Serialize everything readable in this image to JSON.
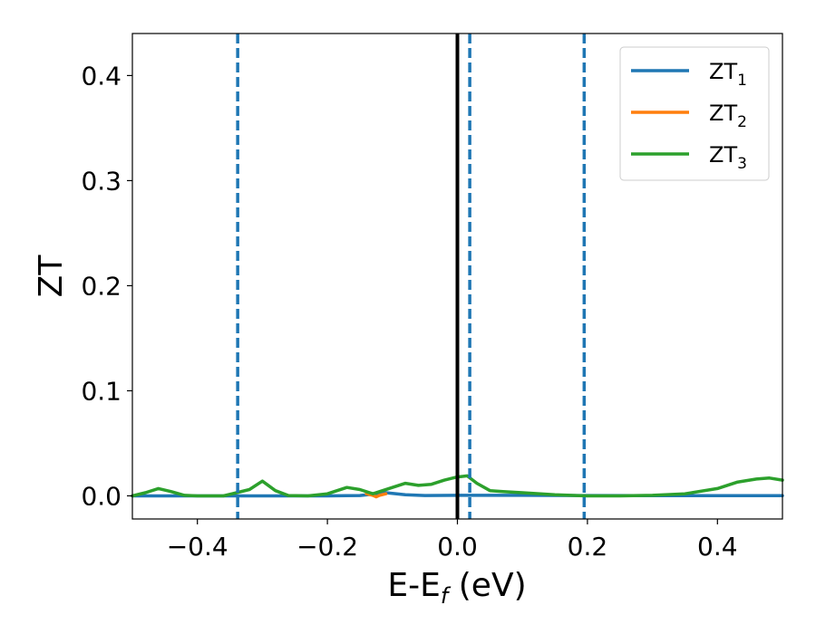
{
  "chart_data": {
    "type": "line",
    "xlabel": {
      "main": "E-E",
      "sub": "f",
      "unit": " (eV)"
    },
    "ylabel": "ZT",
    "xlim": [
      -0.5,
      0.5
    ],
    "ylim": [
      -0.022,
      0.44
    ],
    "x_ticks": [
      {
        "value": -0.4,
        "label": "−0.4"
      },
      {
        "value": -0.2,
        "label": "−0.2"
      },
      {
        "value": 0.0,
        "label": "0.0"
      },
      {
        "value": 0.2,
        "label": "0.2"
      },
      {
        "value": 0.4,
        "label": "0.4"
      }
    ],
    "y_ticks": [
      {
        "value": 0.0,
        "label": "0.0"
      },
      {
        "value": 0.1,
        "label": "0.1"
      },
      {
        "value": 0.2,
        "label": "0.2"
      },
      {
        "value": 0.3,
        "label": "0.3"
      },
      {
        "value": 0.4,
        "label": "0.4"
      }
    ],
    "grid": false,
    "legend_position": "top-right",
    "series": [
      {
        "name": "ZT",
        "sub": "1",
        "color": "#1f77b4",
        "x": [
          -0.5,
          -0.4,
          -0.3,
          -0.2,
          -0.15,
          -0.11,
          -0.08,
          -0.05,
          0.0,
          0.1,
          0.2,
          0.3,
          0.4,
          0.5
        ],
        "y": [
          0.0,
          0.0,
          0.0,
          0.0,
          0.0003,
          0.003,
          0.001,
          0.0003,
          0.0005,
          0.0005,
          0.0003,
          0.0002,
          0.0002,
          0.0002
        ]
      },
      {
        "name": "ZT",
        "sub": "2",
        "color": "#ff7f0e",
        "x": [
          -0.14,
          -0.13,
          -0.125,
          -0.12,
          -0.11
        ],
        "y": [
          0.002,
          0.0005,
          -0.001,
          0.0005,
          0.002
        ]
      },
      {
        "name": "ZT",
        "sub": "3",
        "color": "#2ca02c",
        "x": [
          -0.5,
          -0.48,
          -0.46,
          -0.44,
          -0.42,
          -0.4,
          -0.36,
          -0.32,
          -0.3,
          -0.28,
          -0.26,
          -0.23,
          -0.2,
          -0.17,
          -0.15,
          -0.13,
          -0.12,
          -0.1,
          -0.08,
          -0.06,
          -0.04,
          -0.02,
          0.0,
          0.015,
          0.03,
          0.05,
          0.07,
          0.1,
          0.15,
          0.2,
          0.25,
          0.3,
          0.35,
          0.4,
          0.43,
          0.46,
          0.48,
          0.5
        ],
        "y": [
          0.0,
          0.003,
          0.007,
          0.004,
          0.0005,
          0.0,
          0.0,
          0.006,
          0.014,
          0.005,
          0.0003,
          0.0,
          0.002,
          0.008,
          0.006,
          0.002,
          0.004,
          0.008,
          0.012,
          0.01,
          0.011,
          0.015,
          0.018,
          0.019,
          0.012,
          0.005,
          0.004,
          0.003,
          0.001,
          0.0,
          0.0,
          0.0005,
          0.002,
          0.007,
          0.013,
          0.016,
          0.017,
          0.015
        ]
      }
    ],
    "vlines": [
      {
        "x": -0.338,
        "style": "dashed",
        "color": "#1f77b4"
      },
      {
        "x": 0.019,
        "style": "dashed",
        "color": "#1f77b4"
      },
      {
        "x": 0.195,
        "style": "dashed",
        "color": "#1f77b4"
      },
      {
        "x": 0.0,
        "style": "solid",
        "color": "#000000"
      }
    ]
  }
}
